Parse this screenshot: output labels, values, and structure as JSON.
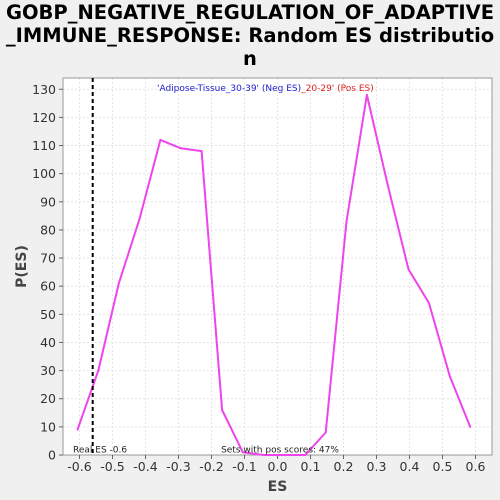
{
  "chart_data": {
    "type": "line",
    "title": "GOBP_NEGATIVE_REGULATION_OF_ADAPTIVE_IMMUNE_RESPONSE: Random ES distribution",
    "xlabel": "ES",
    "ylabel": "P(ES)",
    "xlim": [
      -0.65,
      0.65
    ],
    "ylim": [
      0,
      134
    ],
    "xticks": [
      -0.6,
      -0.5,
      -0.4,
      -0.3,
      -0.2,
      -0.1,
      0.0,
      0.1,
      0.2,
      0.3,
      0.4,
      0.5,
      0.6
    ],
    "xtick_labels": [
      "-0.6",
      "-0.5",
      "-0.4",
      "-0.3",
      "-0.2",
      "-0.1",
      "0.0",
      "0.1",
      "0.2",
      "0.3",
      "0.4",
      "0.5",
      "0.6"
    ],
    "yticks": [
      0,
      10,
      20,
      30,
      40,
      50,
      60,
      70,
      80,
      90,
      100,
      110,
      120,
      130
    ],
    "ytick_labels": [
      "0",
      "10",
      "20",
      "30",
      "40",
      "50",
      "60",
      "70",
      "80",
      "90",
      "100",
      "110",
      "120",
      "130"
    ],
    "grid": true,
    "series": [
      {
        "color": "#ee44ee",
        "x": [
          -0.606,
          -0.543,
          -0.481,
          -0.418,
          -0.355,
          -0.293,
          -0.23,
          -0.168,
          -0.105,
          -0.042,
          0.021,
          0.084,
          0.146,
          0.209,
          0.271,
          0.334,
          0.397,
          0.459,
          0.522,
          0.584
        ],
        "y": [
          9,
          30,
          61,
          84,
          112,
          109,
          108,
          16,
          1,
          0,
          0,
          0,
          8,
          83,
          128,
          96,
          66,
          54,
          28,
          10
        ]
      }
    ],
    "real_es": -0.56,
    "real_es_label": "Real ES -0.6",
    "pos_scores_label": "Sets with pos scores: 47%",
    "legend_neg": "'Adipose-Tissue_30-39' (Neg ES)",
    "legend_pos": "_20-29' (Pos ES)",
    "legend_neg_color": "#2222cc",
    "legend_pos_color": "#dd2222"
  }
}
